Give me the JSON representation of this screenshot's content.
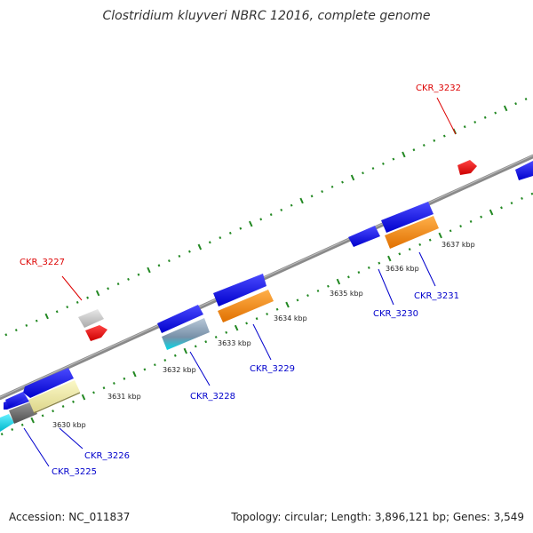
{
  "title": "Clostridium kluyveri NBRC 12016, complete genome",
  "footer": {
    "accession_label": "Accession:",
    "accession": "NC_011837",
    "topology_label": "Topology:",
    "topology": "circular",
    "length_label": "Length:",
    "length": "3,896,121 bp",
    "genes_label": "Genes:",
    "genes": "3,549"
  },
  "scale_labels": [
    "3630 kbp",
    "3631 kbp",
    "3632 kbp",
    "3633 kbp",
    "3634 kbp",
    "3635 kbp",
    "3636 kbp",
    "3637 kbp"
  ],
  "gene_labels": [
    {
      "name": "CKR_3225",
      "color": "#0000cc"
    },
    {
      "name": "CKR_3226",
      "color": "#0000cc"
    },
    {
      "name": "CKR_3227",
      "color": "#dd0000"
    },
    {
      "name": "CKR_3228",
      "color": "#0000cc"
    },
    {
      "name": "CKR_3229",
      "color": "#0000cc"
    },
    {
      "name": "CKR_3230",
      "color": "#0000cc"
    },
    {
      "name": "CKR_3231",
      "color": "#0000cc"
    },
    {
      "name": "CKR_3232",
      "color": "#dd0000"
    }
  ],
  "colors": {
    "backbone": "#888888",
    "ticks": "#228822",
    "forward_gene": "#1a1aee",
    "cds_orange": "#ff8c00",
    "cds_red": "#ee0000",
    "cds_cyan": "#00d8e8",
    "cds_yellow": "#eeeaa0",
    "cds_gray": "#707070",
    "cds_lightgray": "#c8c8c8"
  }
}
